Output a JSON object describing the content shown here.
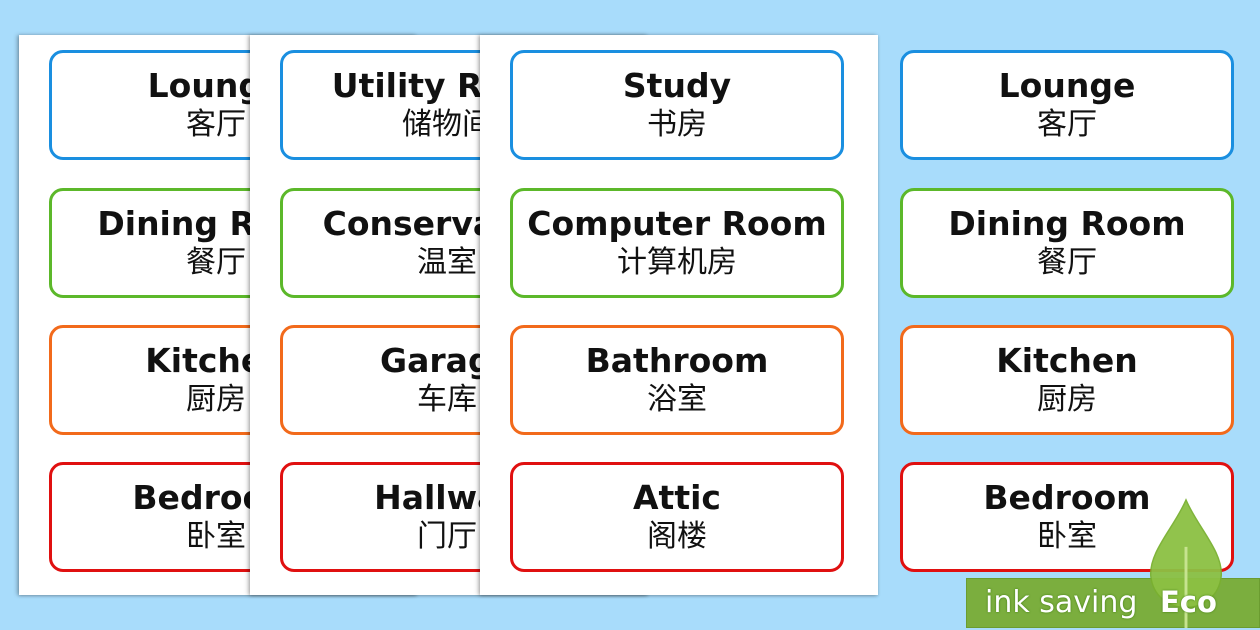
{
  "colors": {
    "background": "#a8dcfb",
    "blue": "#1a8fe0",
    "green": "#5cb82a",
    "orange": "#f26a1b",
    "red": "#e01010",
    "eco_green": "#7bae3e"
  },
  "pages": [
    {
      "cards": [
        {
          "en": "Lounge",
          "zh": "客厅",
          "color": "blue"
        },
        {
          "en": "Dining Room",
          "zh": "餐厅",
          "color": "green"
        },
        {
          "en": "Kitchen",
          "zh": "厨房",
          "color": "orange"
        },
        {
          "en": "Bedroom",
          "zh": "卧室",
          "color": "red"
        }
      ]
    },
    {
      "cards": [
        {
          "en": "Utility Room",
          "zh": "储物间",
          "color": "blue"
        },
        {
          "en": "Conservatory",
          "zh": "温室",
          "color": "green"
        },
        {
          "en": "Garage",
          "zh": "车库",
          "color": "orange"
        },
        {
          "en": "Hallway",
          "zh": "门厅",
          "color": "red"
        }
      ]
    },
    {
      "cards": [
        {
          "en": "Study",
          "zh": "书房",
          "color": "blue"
        },
        {
          "en": "Computer Room",
          "zh": "计算机房",
          "color": "green"
        },
        {
          "en": "Bathroom",
          "zh": "浴室",
          "color": "orange"
        },
        {
          "en": "Attic",
          "zh": "阁楼",
          "color": "red"
        }
      ]
    }
  ],
  "loose_cards": [
    {
      "en": "Lounge",
      "zh": "客厅",
      "color": "blue"
    },
    {
      "en": "Dining Room",
      "zh": "餐厅",
      "color": "green"
    },
    {
      "en": "Kitchen",
      "zh": "厨房",
      "color": "orange"
    },
    {
      "en": "Bedroom",
      "zh": "卧室",
      "color": "red"
    }
  ],
  "badge": {
    "text": "ink saving",
    "label": "Eco",
    "icon": "leaf-icon"
  }
}
